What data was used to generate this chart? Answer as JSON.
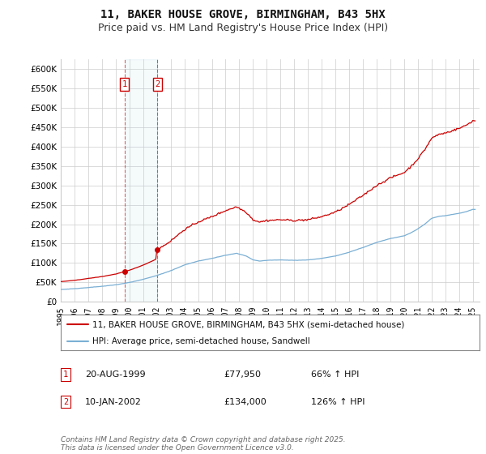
{
  "title": "11, BAKER HOUSE GROVE, BIRMINGHAM, B43 5HX",
  "subtitle": "Price paid vs. HM Land Registry's House Price Index (HPI)",
  "ylim": [
    0,
    625000
  ],
  "yticks": [
    0,
    50000,
    100000,
    150000,
    200000,
    250000,
    300000,
    350000,
    400000,
    450000,
    500000,
    550000,
    600000
  ],
  "ytick_labels": [
    "£0",
    "£50K",
    "£100K",
    "£150K",
    "£200K",
    "£250K",
    "£300K",
    "£350K",
    "£400K",
    "£450K",
    "£500K",
    "£550K",
    "£600K"
  ],
  "xlim_start": 1995.0,
  "xlim_end": 2025.5,
  "xticks": [
    1995,
    1996,
    1997,
    1998,
    1999,
    2000,
    2001,
    2002,
    2003,
    2004,
    2005,
    2006,
    2007,
    2008,
    2009,
    2010,
    2011,
    2012,
    2013,
    2014,
    2015,
    2016,
    2017,
    2018,
    2019,
    2020,
    2021,
    2022,
    2023,
    2024,
    2025
  ],
  "sale1_date": 1999.636,
  "sale1_price": 77950,
  "sale1_label": "1",
  "sale2_date": 2002.036,
  "sale2_price": 134000,
  "sale2_label": "2",
  "bg_color": "#ffffff",
  "grid_color": "#cccccc",
  "red_line_color": "#cc0000",
  "blue_line_color": "#7aafd4",
  "sale_marker_color": "#cc0000",
  "legend_label_red": "11, BAKER HOUSE GROVE, BIRMINGHAM, B43 5HX (semi-detached house)",
  "legend_label_blue": "HPI: Average price, semi-detached house, Sandwell",
  "table_entries": [
    {
      "num": "1",
      "date": "20-AUG-1999",
      "price": "£77,950",
      "change": "66% ↑ HPI"
    },
    {
      "num": "2",
      "date": "10-JAN-2002",
      "price": "£134,000",
      "change": "126% ↑ HPI"
    }
  ],
  "footnote": "Contains HM Land Registry data © Crown copyright and database right 2025.\nThis data is licensed under the Open Government Licence v3.0.",
  "title_fontsize": 10,
  "subtitle_fontsize": 9,
  "tick_fontsize": 7.5,
  "legend_fontsize": 7.5,
  "table_fontsize": 8,
  "footnote_fontsize": 6.5
}
